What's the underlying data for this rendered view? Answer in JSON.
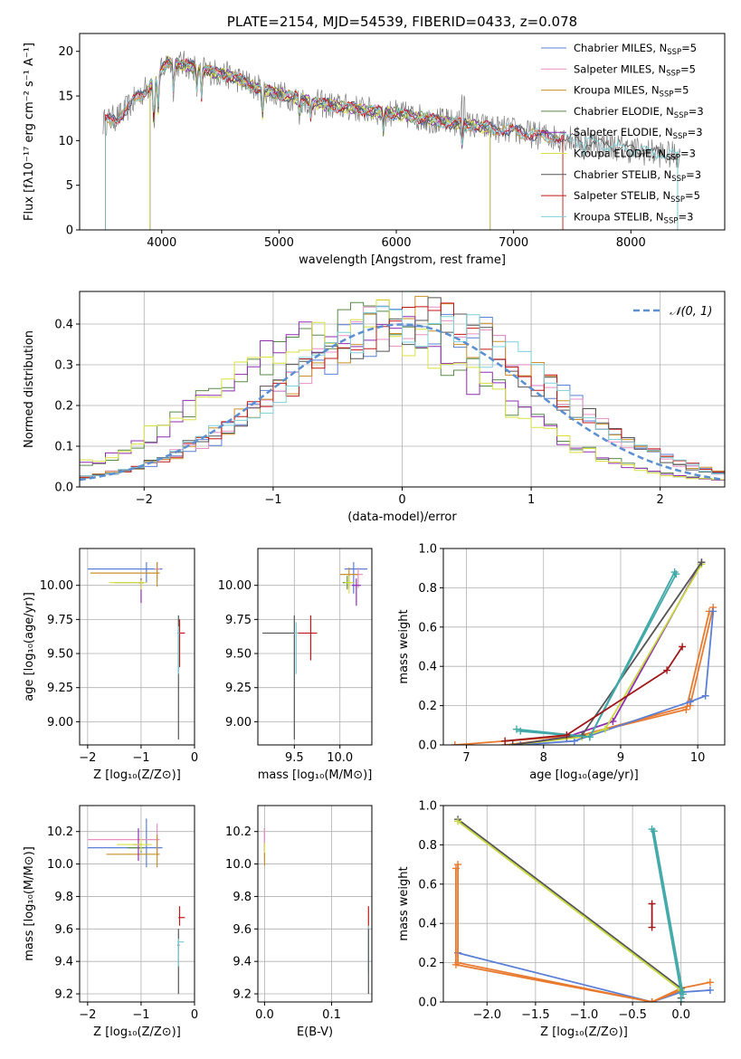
{
  "colors": {
    "Chabrier MILES": "#5b7fd6",
    "Salpeter MILES": "#e88fc4",
    "Kroupa MILES": "#c8902a",
    "Chabrier ELODIE": "#5a8a4a",
    "Salpeter ELODIE": "#8e2fb0",
    "Kroupa ELODIE": "#d8e040",
    "Chabrier STELIB": "#555555",
    "Salpeter STELIB": "#c01818",
    "Kroupa STELIB": "#7fd0d8",
    "gauss": "#5b8fd0",
    "mw_orange": "#e87a30",
    "mw_purple": "#8e2fb0",
    "mw_blue": "#5b7fd6",
    "mw_darkred": "#a01818",
    "mw_teal": "#40a8a8",
    "mw_yellow": "#c8d840",
    "mw_gray": "#555555"
  },
  "chart_data": [
    {
      "id": "spectrum",
      "type": "line",
      "title": "PLATE=2154, MJD=54539, FIBERID=0433, z=0.078",
      "xlabel": "wavelength [Angstrom, rest frame]",
      "ylabel": "Flux [fλ10⁻¹⁷ erg cm⁻² s⁻¹ A⁻¹]",
      "xlim": [
        3300,
        8800
      ],
      "ylim": [
        0,
        22
      ],
      "xticks": [
        4000,
        5000,
        6000,
        7000,
        8000
      ],
      "yticks": [
        0,
        5,
        10,
        15,
        20
      ],
      "grid": false,
      "legend_position": "upper right",
      "legend": [
        {
          "label": "Chabrier MILES, N",
          "sub": "SSP",
          "suffix": "=5"
        },
        {
          "label": "Salpeter MILES, N",
          "sub": "SSP",
          "suffix": "=5"
        },
        {
          "label": "Kroupa MILES, N",
          "sub": "SSP",
          "suffix": "=5"
        },
        {
          "label": "Chabrier ELODIE, N",
          "sub": "SSP",
          "suffix": "=3"
        },
        {
          "label": "Salpeter ELODIE, N",
          "sub": "SSP",
          "suffix": "=3"
        },
        {
          "label": "Kroupa ELODIE, N",
          "sub": "SSP",
          "suffix": "=3"
        },
        {
          "label": "Chabrier STELIB, N",
          "sub": "SSP",
          "suffix": "=3"
        },
        {
          "label": "Salpeter STELIB, N",
          "sub": "SSP",
          "suffix": "=5"
        },
        {
          "label": "Kroupa STELIB, N",
          "sub": "SSP",
          "suffix": "=3"
        }
      ],
      "continuum": {
        "x": [
          3500,
          3650,
          3800,
          3950,
          4050,
          4200,
          4400,
          4600,
          4800,
          5000,
          5200,
          5400,
          5600,
          5800,
          6000,
          6200,
          6400,
          6600,
          6800,
          7000,
          7200,
          7400,
          7600,
          7800,
          8000,
          8200,
          8400
        ],
        "y": [
          12.0,
          12.8,
          15.0,
          16.8,
          18.8,
          18.5,
          17.8,
          17.2,
          16.0,
          15.2,
          14.6,
          14.0,
          13.7,
          13.3,
          13.0,
          12.6,
          12.1,
          11.8,
          11.4,
          11.1,
          10.6,
          10.3,
          10.0,
          9.5,
          9.0,
          8.6,
          8.3
        ]
      }
    },
    {
      "id": "residuals",
      "type": "step",
      "xlabel": "(data-model)/error",
      "ylabel": "Normed distribution",
      "xlim": [
        -2.5,
        2.5
      ],
      "ylim": [
        0,
        0.48
      ],
      "xticks": [
        -2,
        -1,
        0,
        1,
        2
      ],
      "yticks": [
        0.0,
        0.1,
        0.2,
        0.3,
        0.4
      ],
      "grid": true,
      "legend_position": "upper right",
      "legend": [
        {
          "label": "𝒩(0, 1)"
        }
      ],
      "gaussian": {
        "mean": 0,
        "sigma": 1
      }
    },
    {
      "id": "age_vs_Z",
      "type": "errorbar",
      "xlabel": "Z [log₁₀(Z/Z⊙)]",
      "ylabel": "age  [log₁₀(age/yr)]",
      "xlim": [
        -2.15,
        0.0
      ],
      "ylim": [
        8.83,
        10.27
      ],
      "xticks": [
        -2,
        -1,
        0
      ],
      "yticks": [
        9.0,
        9.25,
        9.5,
        9.75,
        10.0
      ],
      "grid": true,
      "points": [
        {
          "series": "Chabrier MILES",
          "x": -0.9,
          "y": 10.12,
          "xerr": [
            1.1,
            0.3
          ],
          "yerr": [
            0.1,
            0.05
          ]
        },
        {
          "series": "Salpeter MILES",
          "x": -0.7,
          "y": 10.12,
          "xerr": [
            0.05,
            0.05
          ],
          "yerr": [
            0.08,
            0.05
          ]
        },
        {
          "series": "Kroupa MILES",
          "x": -0.7,
          "y": 10.09,
          "xerr": [
            1.25,
            0.05
          ],
          "yerr": [
            0.1,
            0.08
          ]
        },
        {
          "series": "Chabrier ELODIE",
          "x": -1.0,
          "y": 10.02,
          "xerr": [
            0.5,
            0.05
          ],
          "yerr": [
            0.03,
            0.03
          ]
        },
        {
          "series": "Salpeter ELODIE",
          "x": -1.0,
          "y": 10.02,
          "xerr": [
            0.05,
            0.05
          ],
          "yerr": [
            0.15,
            0.03
          ]
        },
        {
          "series": "Kroupa ELODIE",
          "x": -1.0,
          "y": 10.02,
          "xerr": [
            0.6,
            0.1
          ],
          "yerr": [
            0.05,
            0.02
          ]
        },
        {
          "series": "Chabrier STELIB",
          "x": -0.3,
          "y": 9.65,
          "xerr": [
            0.02,
            0.02
          ],
          "yerr": [
            0.78,
            0.13
          ]
        },
        {
          "series": "Salpeter STELIB",
          "x": -0.28,
          "y": 9.65,
          "xerr": [
            0.02,
            0.1
          ],
          "yerr": [
            0.25,
            0.1
          ]
        },
        {
          "series": "Kroupa STELIB",
          "x": -0.3,
          "y": 9.65,
          "xerr": [
            0.02,
            0.02
          ],
          "yerr": [
            0.3,
            0.05
          ]
        }
      ]
    },
    {
      "id": "age_vs_mass",
      "type": "errorbar",
      "xlabel": "mass [log₁₀(M/M⊙)]",
      "ylabel": "",
      "xlim": [
        9.1,
        10.35
      ],
      "ylim": [
        8.83,
        10.27
      ],
      "xticks": [
        9.5,
        10.0
      ],
      "yticks": [
        9.0,
        9.25,
        9.5,
        9.75,
        10.0
      ],
      "grid": true,
      "points": [
        {
          "series": "Chabrier MILES",
          "x": 10.15,
          "y": 10.12,
          "xerr": [
            0.1,
            0.15
          ],
          "yerr": [
            0.18,
            0.05
          ]
        },
        {
          "series": "Salpeter MILES",
          "x": 10.2,
          "y": 10.08,
          "xerr": [
            0.05,
            0.05
          ],
          "yerr": [
            0.1,
            0.05
          ]
        },
        {
          "series": "Kroupa MILES",
          "x": 10.1,
          "y": 10.08,
          "xerr": [
            0.1,
            0.1
          ],
          "yerr": [
            0.1,
            0.05
          ]
        },
        {
          "series": "Chabrier ELODIE",
          "x": 10.08,
          "y": 10.02,
          "xerr": [
            0.05,
            0.05
          ],
          "yerr": [
            0.05,
            0.05
          ]
        },
        {
          "series": "Salpeter ELODIE",
          "x": 10.18,
          "y": 10.0,
          "xerr": [
            0.05,
            0.05
          ],
          "yerr": [
            0.15,
            0.05
          ]
        },
        {
          "series": "Kroupa ELODIE",
          "x": 10.1,
          "y": 10.02,
          "xerr": [
            0.05,
            0.05
          ],
          "yerr": [
            0.08,
            0.05
          ]
        },
        {
          "series": "Chabrier STELIB",
          "x": 9.5,
          "y": 9.65,
          "xerr": [
            0.35,
            0.02
          ],
          "yerr": [
            0.78,
            0.13
          ]
        },
        {
          "series": "Salpeter STELIB",
          "x": 9.68,
          "y": 9.65,
          "xerr": [
            0.15,
            0.07
          ],
          "yerr": [
            0.2,
            0.13
          ]
        },
        {
          "series": "Kroupa STELIB",
          "x": 9.52,
          "y": 9.65,
          "xerr": [
            0.02,
            0.02
          ],
          "yerr": [
            0.3,
            0.08
          ]
        }
      ]
    },
    {
      "id": "massweight_vs_age",
      "type": "line",
      "xlabel": "age  [log₁₀(age/yr)]",
      "ylabel": "mass weight",
      "xlim": [
        6.7,
        10.35
      ],
      "ylim": [
        0.0,
        1.0
      ],
      "xticks": [
        7,
        8,
        9,
        10
      ],
      "yticks": [
        0.0,
        0.2,
        0.4,
        0.6,
        0.8,
        1.0
      ],
      "grid": true,
      "series": [
        {
          "color_key": "mw_orange",
          "x": [
            6.85,
            8.5,
            9.9,
            10.2
          ],
          "y": [
            0.0,
            0.05,
            0.2,
            0.7
          ]
        },
        {
          "color_key": "mw_orange",
          "x": [
            7.5,
            8.4,
            9.85,
            10.15
          ],
          "y": [
            0.0,
            0.04,
            0.18,
            0.68
          ]
        },
        {
          "color_key": "mw_blue",
          "x": [
            7.7,
            8.4,
            9.9,
            10.1,
            10.2
          ],
          "y": [
            0.0,
            0.02,
            0.22,
            0.25,
            0.68
          ]
        },
        {
          "color_key": "mw_purple",
          "x": [
            7.6,
            8.3,
            8.9,
            10.05
          ],
          "y": [
            0.0,
            0.04,
            0.12,
            0.93
          ]
        },
        {
          "color_key": "mw_yellow",
          "x": [
            7.6,
            8.5,
            8.8,
            10.05
          ],
          "y": [
            0.0,
            0.04,
            0.08,
            0.92
          ]
        },
        {
          "color_key": "mw_gray",
          "x": [
            7.6,
            8.5,
            10.05
          ],
          "y": [
            0.0,
            0.05,
            0.93
          ]
        },
        {
          "color_key": "mw_teal",
          "x": [
            7.65,
            8.6,
            9.7
          ],
          "y": [
            0.08,
            0.04,
            0.88
          ]
        },
        {
          "color_key": "mw_teal",
          "x": [
            7.7,
            8.6,
            9.72
          ],
          "y": [
            0.07,
            0.04,
            0.87
          ]
        },
        {
          "color_key": "mw_darkred",
          "x": [
            7.5,
            8.3,
            9.6,
            9.8
          ],
          "y": [
            0.02,
            0.05,
            0.38,
            0.5
          ]
        }
      ]
    },
    {
      "id": "mass_vs_Z",
      "type": "errorbar",
      "xlabel": "Z [log₁₀(Z/Z⊙)]",
      "ylabel": "mass [log₁₀(M/M⊙)]",
      "xlim": [
        -2.15,
        0.0
      ],
      "ylim": [
        9.15,
        10.36
      ],
      "xticks": [
        -2,
        -1,
        0
      ],
      "yticks": [
        9.2,
        9.4,
        9.6,
        9.8,
        10.0,
        10.2
      ],
      "grid": true,
      "points": [
        {
          "series": "Chabrier MILES",
          "x": -0.9,
          "y": 10.1,
          "xerr": [
            1.1,
            0.3
          ],
          "yerr": [
            0.12,
            0.18
          ]
        },
        {
          "series": "Salpeter MILES",
          "x": -0.7,
          "y": 10.15,
          "xerr": [
            1.3,
            0.05
          ],
          "yerr": [
            0.1,
            0.1
          ]
        },
        {
          "series": "Kroupa MILES",
          "x": -0.7,
          "y": 10.06,
          "xerr": [
            0.95,
            0.05
          ],
          "yerr": [
            0.08,
            0.12
          ]
        },
        {
          "series": "Chabrier ELODIE",
          "x": -1.0,
          "y": 10.1,
          "xerr": [
            0.25,
            0.05
          ],
          "yerr": [
            0.03,
            0.03
          ]
        },
        {
          "series": "Salpeter ELODIE",
          "x": -1.05,
          "y": 10.12,
          "xerr": [
            0.1,
            0.05
          ],
          "yerr": [
            0.1,
            0.1
          ]
        },
        {
          "series": "Kroupa ELODIE",
          "x": -1.0,
          "y": 10.12,
          "xerr": [
            0.45,
            0.2
          ],
          "yerr": [
            0.04,
            0.04
          ]
        },
        {
          "series": "Chabrier STELIB",
          "x": -0.3,
          "y": 9.5,
          "xerr": [
            0.02,
            0.02
          ],
          "yerr": [
            0.3,
            0.1
          ]
        },
        {
          "series": "Salpeter STELIB",
          "x": -0.28,
          "y": 9.67,
          "xerr": [
            0.02,
            0.1
          ],
          "yerr": [
            0.05,
            0.07
          ]
        },
        {
          "series": "Kroupa STELIB",
          "x": -0.3,
          "y": 9.52,
          "xerr": [
            0.02,
            0.1
          ],
          "yerr": [
            0.15,
            0.02
          ]
        }
      ]
    },
    {
      "id": "mass_vs_EBV",
      "type": "errorbar",
      "xlabel": "E(B-V)",
      "ylabel": "",
      "xlim": [
        -0.01,
        0.16
      ],
      "ylim": [
        9.15,
        10.36
      ],
      "xticks": [
        0.0,
        0.1
      ],
      "yticks": [
        9.2,
        9.4,
        9.6,
        9.8,
        10.0,
        10.2
      ],
      "grid": true,
      "points": [
        {
          "series": "Salpeter ELODIE",
          "x": 0.0,
          "y": 10.15,
          "xerr": [
            0,
            0
          ],
          "yerr": [
            0.07,
            0.07
          ]
        },
        {
          "series": "Salpeter MILES",
          "x": 0.0,
          "y": 10.12,
          "xerr": [
            0,
            0
          ],
          "yerr": [
            0.1,
            0.1
          ]
        },
        {
          "series": "Kroupa ELODIE",
          "x": 0.0,
          "y": 10.08,
          "xerr": [
            0,
            0
          ],
          "yerr": [
            0.05,
            0.05
          ]
        },
        {
          "series": "Kroupa MILES",
          "x": 0.0,
          "y": 10.03,
          "xerr": [
            0,
            0
          ],
          "yerr": [
            0.04,
            0.04
          ]
        },
        {
          "series": "Salpeter STELIB",
          "x": 0.155,
          "y": 9.67,
          "xerr": [
            0,
            0
          ],
          "yerr": [
            0.07,
            0.07
          ]
        },
        {
          "series": "Kroupa STELIB",
          "x": 0.155,
          "y": 9.52,
          "xerr": [
            0,
            0
          ],
          "yerr": [
            0.2,
            0.1
          ]
        },
        {
          "series": "Chabrier STELIB",
          "x": 0.155,
          "y": 9.5,
          "xerr": [
            0,
            0
          ],
          "yerr": [
            0.3,
            0.1
          ]
        }
      ]
    },
    {
      "id": "massweight_vs_Z",
      "type": "line",
      "xlabel": "Z [log₁₀(Z/Z⊙)]",
      "ylabel": "mass weight",
      "xlim": [
        -2.45,
        0.45
      ],
      "ylim": [
        0.0,
        1.0
      ],
      "xticks": [
        -2.0,
        -1.5,
        -1.0,
        -0.5,
        0.0
      ],
      "yticks": [
        0.0,
        0.2,
        0.4,
        0.6,
        0.8,
        1.0
      ],
      "grid": true,
      "series": [
        {
          "color_key": "mw_blue",
          "x": [
            -2.3,
            -0.3,
            0.0,
            0.3
          ],
          "y": [
            0.25,
            0.0,
            0.05,
            0.06
          ]
        },
        {
          "color_key": "mw_orange",
          "x": [
            -2.3,
            -2.3,
            -0.3,
            0.0,
            0.3
          ],
          "y": [
            0.7,
            0.2,
            0.0,
            0.07,
            0.1
          ]
        },
        {
          "color_key": "mw_orange",
          "x": [
            -2.32,
            -2.32,
            -0.3,
            0.0
          ],
          "y": [
            0.68,
            0.19,
            0.0,
            0.06
          ]
        },
        {
          "color_key": "mw_gray",
          "x": [
            -2.3,
            0.0,
            0.0
          ],
          "y": [
            0.93,
            0.07,
            0.02
          ]
        },
        {
          "color_key": "mw_yellow",
          "x": [
            -2.3,
            0.0
          ],
          "y": [
            0.92,
            0.06
          ]
        },
        {
          "color_key": "mw_teal",
          "x": [
            -0.3,
            0.0,
            0.0
          ],
          "y": [
            0.88,
            0.05,
            0.0
          ]
        },
        {
          "color_key": "mw_teal",
          "x": [
            -0.28,
            0.02
          ],
          "y": [
            0.87,
            0.04
          ]
        },
        {
          "color_key": "mw_darkred",
          "x": [
            -0.3,
            -0.3
          ],
          "y": [
            0.5,
            0.38
          ]
        }
      ]
    }
  ]
}
